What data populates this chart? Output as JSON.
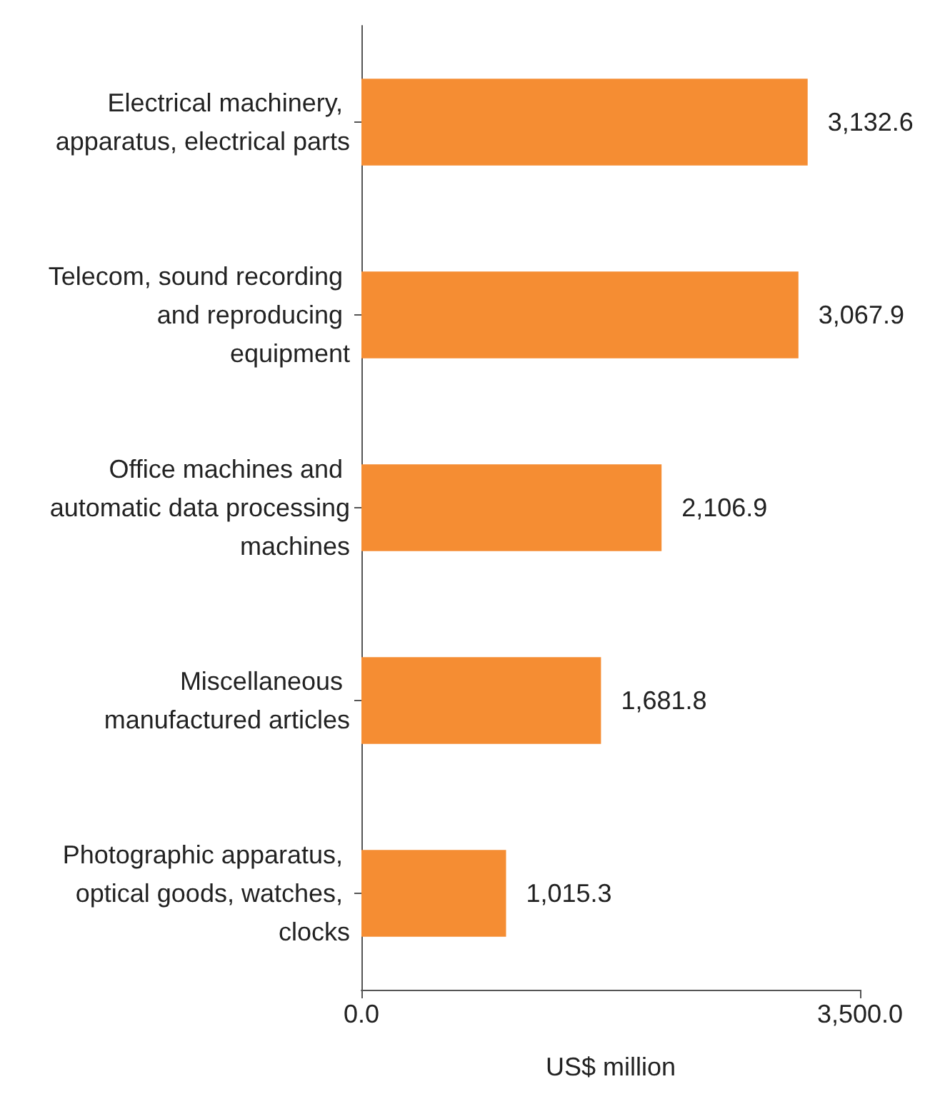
{
  "chart_data": {
    "type": "bar",
    "orientation": "horizontal",
    "categories": [
      "Electrical machinery, apparatus, electrical parts",
      "Telecom, sound recording and reproducing equipment",
      "Office machines and automatic data processing machines",
      "Miscellaneous manufactured articles",
      "Photographic apparatus, optical goods, watches, clocks"
    ],
    "values": [
      3132.6,
      3067.9,
      2106.9,
      1681.8,
      1015.3
    ],
    "value_labels": [
      "3,132.6",
      "3,067.9",
      "2,106.9",
      "1,681.8",
      "1,015.3"
    ],
    "color": "#f58d33",
    "xlim": [
      0,
      3500
    ],
    "xticks": [
      {
        "value": 0,
        "label": "0.0"
      },
      {
        "value": 3500,
        "label": "3,500.0"
      }
    ],
    "xlabel": "US$ million"
  }
}
